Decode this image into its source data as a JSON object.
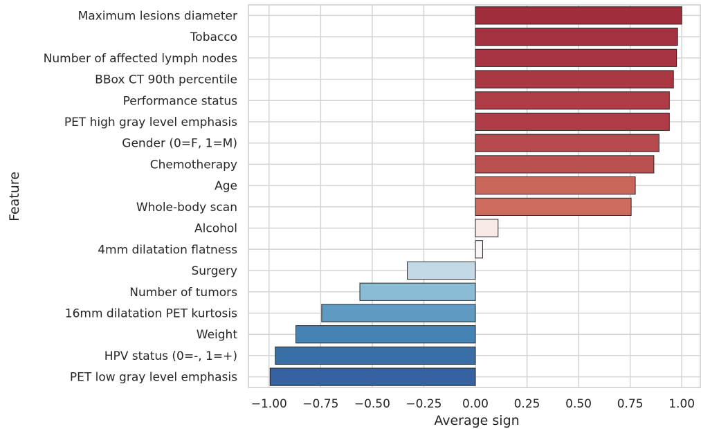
{
  "chart_data": {
    "type": "bar",
    "orientation": "horizontal",
    "xlabel": "Average sign",
    "ylabel": "Feature",
    "xlim": [
      -1.1,
      1.09
    ],
    "xticks": [
      -1.0,
      -0.75,
      -0.5,
      -0.25,
      0.0,
      0.25,
      0.5,
      0.75,
      1.0
    ],
    "xtick_labels": [
      "−1.00",
      "−0.75",
      "−0.50",
      "−0.25",
      "0.00",
      "0.25",
      "0.50",
      "0.75",
      "1.00"
    ],
    "grid": true,
    "colormap": "diverging red-white-blue",
    "categories": [
      "Maximum lesions diameter",
      "Tobacco",
      "Number of affected lymph nodes",
      "BBox CT 90th percentile",
      "Performance status",
      "PET high gray level emphasis",
      "Gender (0=F, 1=M)",
      "Chemotherapy",
      "Age",
      "Whole-body scan",
      "Alcohol",
      "4mm dilatation flatness",
      "Surgery",
      "Number of tumors",
      "16mm dilatation PET kurtosis",
      "Weight",
      "HPV status (0=-, 1=+)",
      "PET low gray level emphasis"
    ],
    "values": [
      1.0,
      0.98,
      0.975,
      0.96,
      0.94,
      0.94,
      0.89,
      0.865,
      0.775,
      0.755,
      0.11,
      0.035,
      -0.33,
      -0.56,
      -0.745,
      -0.87,
      -0.97,
      -0.995
    ],
    "colors": [
      "#a02c3c",
      "#a5313f",
      "#a73440",
      "#aa3742",
      "#ae3b45",
      "#ae3b45",
      "#b54b4c",
      "#b8514f",
      "#c86659",
      "#cb6c5e",
      "#f8ebe7",
      "#fbf6f5",
      "#c3d9e5",
      "#8bbcd6",
      "#5f9ac3",
      "#4683b5",
      "#3a6ea6",
      "#36629f"
    ]
  }
}
